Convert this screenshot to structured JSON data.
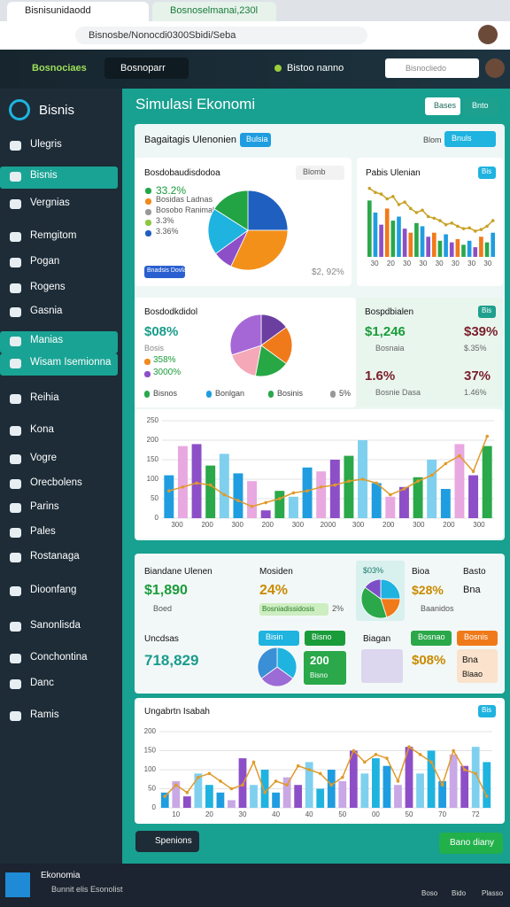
{
  "browser": {
    "tabs": [
      "Bisnisunidaodd",
      "Bosnoselmanai,230l"
    ],
    "url": "Bisnosbe/Nonocdi0300Sbidi/Seba"
  },
  "header": {
    "brand": "Bosnociaes",
    "tab": "Bosnoparr",
    "status": "Bistoo nanno",
    "search": "Bisnocliedo"
  },
  "sidebar": {
    "logo": "Bisnis",
    "items": [
      "Ulegris",
      "Bisnis",
      "Vergnias",
      "Remgitom",
      "Pogan",
      "Rogens",
      "Gasnia",
      "Manias",
      "Wisam Isemionna",
      "Reihia",
      "Kona",
      "Vogre",
      "Orecbolens",
      "Parins",
      "Pales",
      "Rostanaga",
      "Dioonfang",
      "Sanonlisda",
      "Conchontina",
      "Danc",
      "Ramis"
    ],
    "active": [
      1,
      7,
      8
    ]
  },
  "main": {
    "title": "Simulasi Ekonomi",
    "buttons": [
      "Bases",
      "Bnto"
    ]
  },
  "panel": {
    "title": "Bagaitagis Ulenonien",
    "tag": "Bulsia",
    "filter": "Blom",
    "action": "Bnuls"
  },
  "pie1": {
    "title": "Bosdobaudisdodoa",
    "dropdown": "Blomb",
    "legend": [
      {
        "text": "33.2%",
        "color": "#1fa84a"
      },
      {
        "text": "Bosidas Ladnas",
        "color": "#f08a1c"
      },
      {
        "text": "Bosobo Ranimal",
        "color": "#999999"
      },
      {
        "text": "3.3%",
        "color": "#8dc63f"
      },
      {
        "text": "3.36%",
        "color": "#1f5fbf"
      }
    ],
    "button": "Bnadsis Dovlad",
    "footer": "$2, 92%",
    "values": [
      25,
      32,
      8,
      19,
      16
    ],
    "colors": [
      "#1f5fbf",
      "#f39019",
      "#8d4fc7",
      "#1fb3e0",
      "#22a444"
    ]
  },
  "trend": {
    "title": "Pabis Ulenian",
    "tag": "Bis",
    "bars": {
      "values": [
        70,
        55,
        40,
        60,
        45,
        50,
        35,
        30,
        42,
        38,
        25,
        30,
        20,
        28,
        18,
        22,
        15,
        20,
        12,
        25,
        18,
        30
      ],
      "colors": [
        "#2aa84a",
        "#1f9de0",
        "#8d4fc7",
        "#f07a1a"
      ]
    },
    "line": {
      "values": [
        85,
        80,
        78,
        72,
        75,
        65,
        68,
        60,
        55,
        58,
        50,
        48,
        45,
        40,
        42,
        38,
        35,
        36,
        32,
        34,
        38,
        45
      ],
      "color": "#c9a227"
    },
    "xlabels": [
      "30",
      "20",
      "30",
      "30",
      "30",
      "30",
      "30",
      "30"
    ]
  },
  "pie2": {
    "title": "Bosdodkdidol",
    "value": "$08%",
    "sub": "Bosis",
    "rows": [
      {
        "text": "358%",
        "color": "#f08a1c"
      },
      {
        "text": "3000%",
        "color": "#8d4fc7"
      }
    ],
    "legend": [
      {
        "text": "Bisnos",
        "color": "#2aa84a"
      },
      {
        "text": "Bonlgan",
        "color": "#1f9de0"
      },
      {
        "text": "Bosinis",
        "color": "#2aa84a"
      },
      {
        "text": "5%",
        "color": "#999999"
      }
    ],
    "values": [
      15,
      20,
      18,
      17,
      30
    ],
    "colors": [
      "#6a3fa0",
      "#f07a1a",
      "#28a745",
      "#f4a8b8",
      "#a667d6"
    ]
  },
  "kpis": {
    "title": "Bospdbialen",
    "tag": "Bis",
    "items": [
      {
        "value": "$1,246",
        "label": "Bosnaia",
        "color": "#1a9c3a"
      },
      {
        "value": "$39%",
        "label": "$.35%",
        "color": "#7a1f2a"
      },
      {
        "value": "1.6%",
        "label": "Bosnie Dasa",
        "color": "#7a1f2a"
      },
      {
        "value": "37%",
        "label": "1.46%",
        "color": "#7a1f2a"
      }
    ]
  },
  "combo": {
    "ylim": [
      0,
      250
    ],
    "yticks": [
      0,
      50,
      100,
      150,
      200,
      250
    ],
    "bars": {
      "values": [
        110,
        185,
        190,
        135,
        165,
        115,
        95,
        20,
        70,
        55,
        130,
        120,
        150,
        160,
        200,
        90,
        55,
        80,
        105,
        150,
        75,
        190,
        110,
        185
      ],
      "colors": [
        "#1f9de0",
        "#e8a8e0",
        "#8d4fc7",
        "#2aa84a",
        "#7fd0ee"
      ]
    },
    "line": {
      "values": [
        70,
        80,
        90,
        85,
        60,
        45,
        30,
        40,
        50,
        65,
        70,
        80,
        85,
        95,
        100,
        90,
        60,
        75,
        95,
        110,
        140,
        160,
        120,
        210
      ],
      "color": "#e09a2a"
    },
    "xlabels": [
      "300",
      "200",
      "300",
      "200",
      "300",
      "2000",
      "300",
      "200",
      "300",
      "200",
      "300"
    ]
  },
  "summary": {
    "row1": [
      {
        "title": "Biandane Ulenen",
        "value": "$1,890",
        "note": "Boed"
      },
      {
        "title": "Mosiden",
        "value": "24%",
        "bar": "Bosniadissidosis",
        "pct": "2%"
      },
      {
        "value": "$03%"
      },
      {
        "title": "Bioa",
        "value": "$28%",
        "note": "Baanidos"
      },
      {
        "title": "Basto",
        "value": "Bna"
      }
    ],
    "row2": [
      {
        "title": "Uncdsas",
        "value": "718,829"
      },
      {
        "buttons": [
          "Bisin",
          "Bisno"
        ]
      },
      {
        "value": "200",
        "note": "Bisno"
      },
      {
        "title": "Biagan"
      },
      {
        "buttons": [
          "Bosnao",
          "Bosnis"
        ]
      },
      {
        "value": "$08%"
      },
      {
        "value": "Bna",
        "note": "Blaao"
      }
    ],
    "pie_a": {
      "values": [
        25,
        20,
        40,
        15
      ],
      "colors": [
        "#1fb3e0",
        "#f07a1a",
        "#2aa84a",
        "#7c4fc7"
      ]
    },
    "pie_b": {
      "values": [
        35,
        30,
        35
      ],
      "colors": [
        "#1fb3e0",
        "#9b6bd6",
        "#3a8fd6"
      ]
    }
  },
  "bottom": {
    "title": "Ungabrtn Isabah",
    "tag": "Bis",
    "ylim": [
      0,
      200
    ],
    "yticks": [
      0,
      50,
      100,
      150,
      200
    ],
    "bars": {
      "values": [
        40,
        70,
        30,
        90,
        60,
        40,
        20,
        130,
        60,
        100,
        40,
        80,
        60,
        120,
        50,
        100,
        70,
        150,
        90,
        130,
        110,
        60,
        160,
        90,
        150,
        70,
        140,
        110,
        160,
        120
      ],
      "colors": [
        "#1f9de0",
        "#c9a8e6",
        "#8d4fc7",
        "#7fd0ee",
        "#1fb3e0"
      ]
    },
    "line": {
      "values": [
        30,
        60,
        40,
        80,
        90,
        70,
        50,
        60,
        120,
        40,
        70,
        60,
        110,
        100,
        90,
        60,
        80,
        150,
        120,
        140,
        130,
        70,
        160,
        140,
        120,
        60,
        150,
        100,
        90,
        30
      ],
      "color": "#e09a2a"
    },
    "xlabels": [
      "10",
      "20",
      "30",
      "40",
      "40",
      "50",
      "00",
      "50",
      "70",
      "72"
    ]
  },
  "footer_buttons": [
    "Spenions",
    "Bano diany"
  ],
  "taskbar": {
    "app": "Ekonomia",
    "sub": "Bunnit elis Esonolist",
    "icons": [
      "Boso",
      "Bido",
      "Plasso"
    ]
  }
}
